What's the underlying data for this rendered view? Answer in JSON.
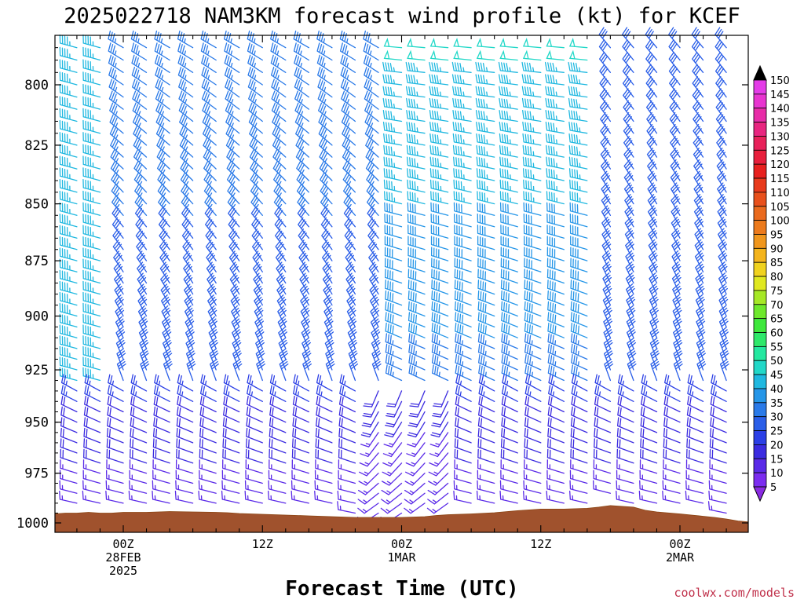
{
  "title": "2025022718 NAM3KM forecast wind profile (kt) for KCEF",
  "credit": "coolwx.com/models",
  "chart_data": {
    "type": "wind-barb-time-height",
    "title": "2025022718 NAM3KM forecast wind profile (kt) for KCEF",
    "xlabel": "Forecast Time (UTC)",
    "ylabel": "",
    "y_axis": {
      "scale": "pressure (inverted)",
      "range": [
        1004,
        780
      ],
      "ticks": [
        800,
        825,
        850,
        875,
        900,
        925,
        950,
        975,
        1000
      ]
    },
    "x_axis": {
      "range_hours": [
        -3,
        27
      ],
      "ticks": [
        {
          "hour": 0,
          "lines": [
            "00Z",
            "28FEB",
            "2025"
          ]
        },
        {
          "hour": 6,
          "lines": [
            "12Z"
          ]
        },
        {
          "hour": 12,
          "lines": [
            "00Z",
            "1MAR"
          ]
        },
        {
          "hour": 18,
          "lines": [
            "12Z"
          ]
        },
        {
          "hour": 24,
          "lines": [
            "00Z",
            "2MAR"
          ]
        }
      ]
    },
    "colorbar": {
      "levels": [
        5,
        10,
        15,
        20,
        25,
        30,
        35,
        40,
        45,
        50,
        55,
        60,
        65,
        70,
        75,
        80,
        85,
        90,
        95,
        100,
        105,
        110,
        115,
        120,
        125,
        130,
        135,
        140,
        145,
        150
      ],
      "colors": [
        "#8a2be2",
        "#7b2cf0",
        "#5a2ae8",
        "#3b2be0",
        "#2b3fe6",
        "#2a5ee8",
        "#2a7ae8",
        "#2596e8",
        "#1fb8e0",
        "#22d8c8",
        "#24e8a0",
        "#2ee86a",
        "#3ee83c",
        "#6ee82c",
        "#a6e826",
        "#e0e820",
        "#f0d21e",
        "#f4b41c",
        "#f0961c",
        "#ec7a1c",
        "#ea6a1e",
        "#e8501c",
        "#e83a1c",
        "#e8201e",
        "#e81f3c",
        "#e8215a",
        "#e82680",
        "#e82ca8",
        "#e834d0",
        "#e43ce8"
      ]
    },
    "barb_columns_hours": [
      -3,
      -2,
      -1,
      0,
      1,
      2,
      3,
      4,
      5,
      6,
      7,
      8,
      9,
      10,
      11,
      12,
      13,
      14,
      15,
      16,
      17,
      18,
      19,
      20,
      21,
      22,
      23,
      24,
      25,
      26,
      27
    ],
    "barb_levels_hpa": [
      785,
      790,
      795,
      800,
      805,
      810,
      815,
      820,
      825,
      830,
      835,
      840,
      845,
      850,
      855,
      860,
      865,
      870,
      875,
      880,
      885,
      890,
      895,
      900,
      905,
      910,
      915,
      920,
      925,
      930,
      935,
      940,
      945,
      950,
      955,
      960,
      965,
      970,
      975,
      980,
      985,
      990,
      995,
      1000
    ],
    "surface_pressure_hpa": [
      995.4,
      995.0,
      995.0,
      994.6,
      995.0,
      995.0,
      994.6,
      994.6,
      994.2,
      994.4,
      994.6,
      994.8,
      995.2,
      995.6,
      996.0,
      996.4,
      996.8,
      997.2,
      997.2,
      997.2,
      997.2,
      996.8,
      996.2,
      995.8,
      995.4,
      994.8,
      993.8,
      993.0,
      993.0,
      992.6,
      992.0,
      991.2,
      991.6,
      992.0,
      993.6,
      994.4,
      995.4,
      996.0,
      996.6,
      997.2,
      998.0,
      999.0,
      999.5,
      1000.0,
      1000.5
    ],
    "surface_hours": [
      -3,
      -2.5,
      -2,
      -1.5,
      -1,
      -0.5,
      0,
      1,
      2,
      3,
      4,
      4.5,
      5,
      6,
      7,
      8,
      9,
      10,
      10.5,
      11,
      12,
      13,
      13.5,
      14,
      15,
      16,
      17,
      18,
      19,
      20,
      20.5,
      21,
      21.5,
      22,
      22.5,
      23,
      24,
      24.5,
      25,
      25.5,
      26,
      26.5,
      27,
      27.5,
      28
    ],
    "wind_profile": {
      "description": "direction (deg, from) and speed (kt) at each level/time, sampled as piecewise fields",
      "speed_kt_by_region": {
        "upper_early_hours_-3_to_-1": 45,
        "upper_hours_0_to_11": 35,
        "upper_hours_12_to_20": 45,
        "upper_hours_21_to_27": 30,
        "low_levels_below_960": 15
      },
      "direction_deg_by_region": {
        "upper_hours_-3_to_11": 290,
        "upper_hours_12_to_20": 280,
        "upper_hours_21_to_27": 330,
        "mid_hours_0_to_11": 320,
        "low_levels": 300,
        "around_hour_12_low": 200
      }
    }
  }
}
